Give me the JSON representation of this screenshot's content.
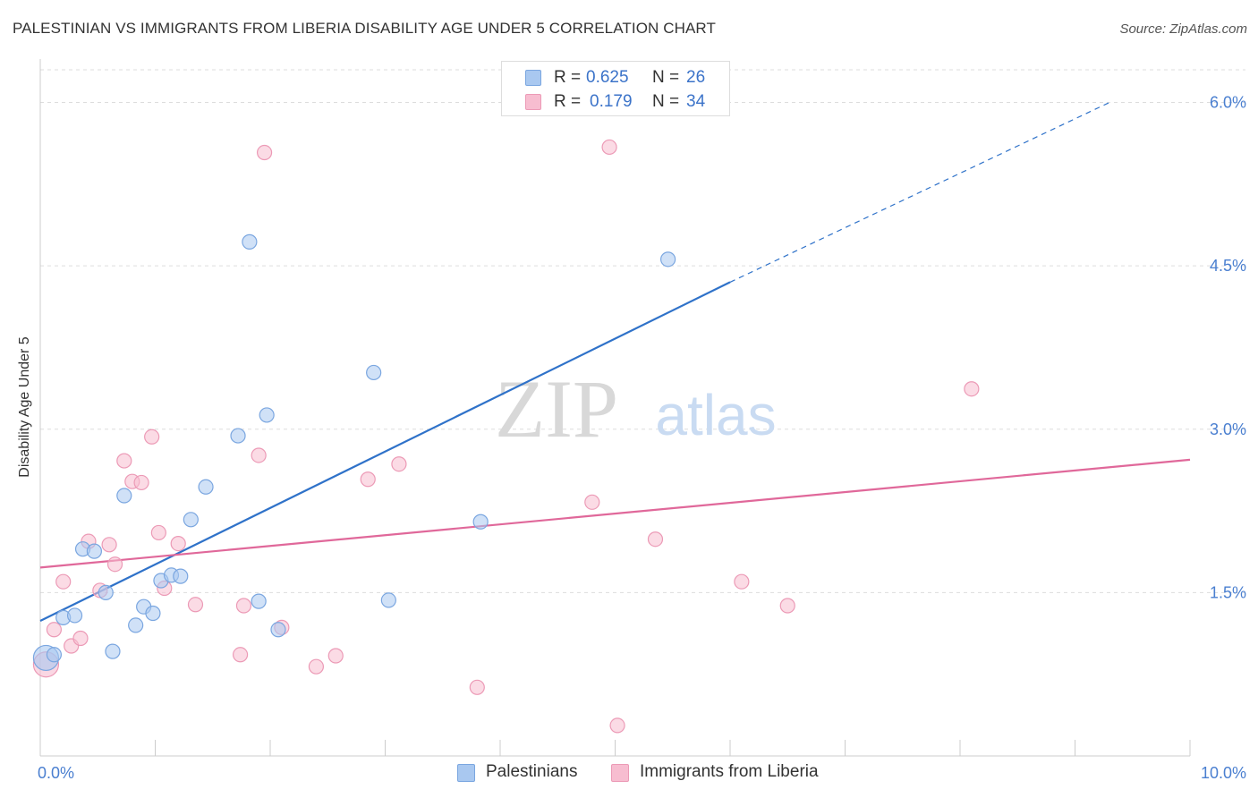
{
  "title": "PALESTINIAN VS IMMIGRANTS FROM LIBERIA DISABILITY AGE UNDER 5 CORRELATION CHART",
  "source": "Source: ZipAtlas.com",
  "watermark": {
    "zip": "ZIP",
    "atlas": "atlas"
  },
  "colors": {
    "blue_fill": "#a9c8f0",
    "blue_stroke": "#7aa6e0",
    "blue_line": "#2f72c9",
    "pink_fill": "#f7bdd0",
    "pink_stroke": "#ec9ab6",
    "pink_line": "#e0689a",
    "grid": "#dddddd",
    "tick_label": "#4a7fd0"
  },
  "legend": {
    "series": [
      {
        "r_label": "R =",
        "r_value": "0.625",
        "n_label": "N =",
        "n_value": "26"
      },
      {
        "r_label": "R =",
        "r_value": "0.179",
        "n_label": "N =",
        "n_value": "34"
      }
    ]
  },
  "bottom_legend": [
    "Palestinians",
    "Immigrants from Liberia"
  ],
  "chart_data": {
    "type": "scatter",
    "title": "PALESTINIAN VS IMMIGRANTS FROM LIBERIA DISABILITY AGE UNDER 5 CORRELATION CHART",
    "xlabel": "",
    "ylabel": "Disability Age Under 5",
    "xlim": [
      0,
      10
    ],
    "ylim": [
      0,
      6.3
    ],
    "x_tick_labels": [
      "0.0%",
      "10.0%"
    ],
    "y_ticks": [
      1.5,
      3.0,
      4.5,
      6.0
    ],
    "y_tick_labels": [
      "1.5%",
      "3.0%",
      "4.5%",
      "6.0%"
    ],
    "grid": true,
    "series": [
      {
        "name": "Palestinians",
        "r": 0.625,
        "n": 26,
        "points": [
          {
            "x": 0.05,
            "y": 0.9,
            "big": true
          },
          {
            "x": 0.12,
            "y": 0.93
          },
          {
            "x": 0.2,
            "y": 1.27
          },
          {
            "x": 0.3,
            "y": 1.29
          },
          {
            "x": 0.37,
            "y": 1.9
          },
          {
            "x": 0.47,
            "y": 1.88
          },
          {
            "x": 0.57,
            "y": 1.5
          },
          {
            "x": 0.63,
            "y": 0.96
          },
          {
            "x": 0.73,
            "y": 2.39
          },
          {
            "x": 0.83,
            "y": 1.2
          },
          {
            "x": 0.9,
            "y": 1.37
          },
          {
            "x": 0.98,
            "y": 1.31
          },
          {
            "x": 1.05,
            "y": 1.61
          },
          {
            "x": 1.14,
            "y": 1.66
          },
          {
            "x": 1.22,
            "y": 1.65
          },
          {
            "x": 1.31,
            "y": 2.17
          },
          {
            "x": 1.44,
            "y": 2.47
          },
          {
            "x": 1.72,
            "y": 2.94
          },
          {
            "x": 1.82,
            "y": 4.72
          },
          {
            "x": 1.9,
            "y": 1.42
          },
          {
            "x": 1.97,
            "y": 3.13
          },
          {
            "x": 2.07,
            "y": 1.16
          },
          {
            "x": 2.9,
            "y": 3.52
          },
          {
            "x": 3.03,
            "y": 1.43
          },
          {
            "x": 3.83,
            "y": 2.15
          },
          {
            "x": 5.46,
            "y": 4.56
          }
        ],
        "trend": {
          "x0": 0,
          "y0": 1.24,
          "x1": 6.0,
          "y1": 4.35,
          "dash_to_x": 9.3,
          "dash_to_y": 6.0
        }
      },
      {
        "name": "Immigrants from Liberia",
        "r": 0.179,
        "n": 34,
        "points": [
          {
            "x": 0.05,
            "y": 0.84,
            "big": true
          },
          {
            "x": 0.12,
            "y": 1.16
          },
          {
            "x": 0.2,
            "y": 1.6
          },
          {
            "x": 0.27,
            "y": 1.01
          },
          {
            "x": 0.35,
            "y": 1.08
          },
          {
            "x": 0.42,
            "y": 1.97
          },
          {
            "x": 0.52,
            "y": 1.52
          },
          {
            "x": 0.6,
            "y": 1.94
          },
          {
            "x": 0.65,
            "y": 1.76
          },
          {
            "x": 0.73,
            "y": 2.71
          },
          {
            "x": 0.8,
            "y": 2.52
          },
          {
            "x": 0.88,
            "y": 2.51
          },
          {
            "x": 0.97,
            "y": 2.93
          },
          {
            "x": 1.03,
            "y": 2.05
          },
          {
            "x": 1.08,
            "y": 1.54
          },
          {
            "x": 1.2,
            "y": 1.95
          },
          {
            "x": 1.35,
            "y": 1.39
          },
          {
            "x": 1.74,
            "y": 0.93
          },
          {
            "x": 1.77,
            "y": 1.38
          },
          {
            "x": 1.9,
            "y": 2.76
          },
          {
            "x": 1.95,
            "y": 5.54
          },
          {
            "x": 2.1,
            "y": 1.18
          },
          {
            "x": 2.4,
            "y": 0.82
          },
          {
            "x": 2.57,
            "y": 0.92
          },
          {
            "x": 2.85,
            "y": 2.54
          },
          {
            "x": 3.12,
            "y": 2.68
          },
          {
            "x": 3.8,
            "y": 0.63
          },
          {
            "x": 4.8,
            "y": 2.33
          },
          {
            "x": 4.95,
            "y": 5.59
          },
          {
            "x": 5.02,
            "y": 0.28
          },
          {
            "x": 5.35,
            "y": 1.99
          },
          {
            "x": 6.1,
            "y": 1.6
          },
          {
            "x": 6.5,
            "y": 1.38
          },
          {
            "x": 8.1,
            "y": 3.37
          }
        ],
        "trend": {
          "x0": 0,
          "y0": 1.73,
          "x1": 10,
          "y1": 2.72
        }
      }
    ]
  }
}
